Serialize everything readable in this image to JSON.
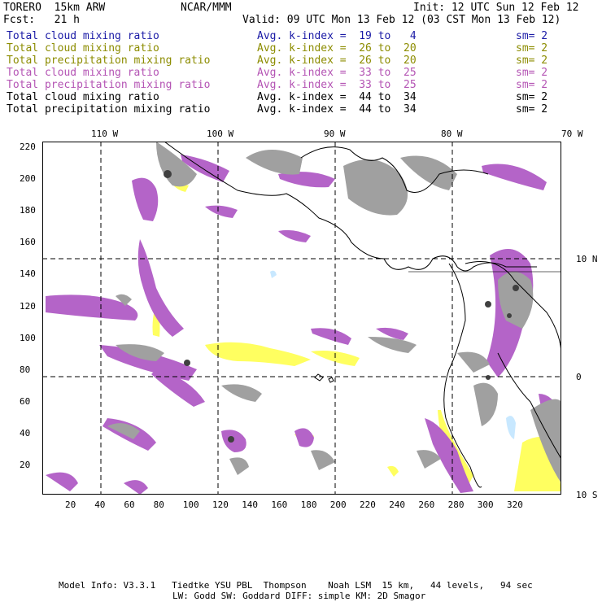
{
  "header": {
    "model": "TORERO  15km ARW",
    "center": "NCAR/MMM",
    "init": "Init: 12 UTC Sun 12 Feb 12",
    "fcst": "Fcst:   21 h",
    "valid": "Valid: 09 UTC Mon 13 Feb 12 (03 CST Mon 13 Feb 12)"
  },
  "legend": [
    {
      "field": "Total cloud mixing ratio",
      "kindex": "Avg. k-index =  19 to   4",
      "sm": "sm= 2",
      "color": "#1a1aa6"
    },
    {
      "field": "Total cloud mixing ratio",
      "kindex": "Avg. k-index =  26 to  20",
      "sm": "sm= 2",
      "color": "#8c8c00"
    },
    {
      "field": "Total precipitation mixing ratio",
      "kindex": "Avg. k-index =  26 to  20",
      "sm": "sm= 2",
      "color": "#8c8c00"
    },
    {
      "field": "Total cloud mixing ratio",
      "kindex": "Avg. k-index =  33 to  25",
      "sm": "sm= 2",
      "color": "#b454b4"
    },
    {
      "field": "Total precipitation mixing ratio",
      "kindex": "Avg. k-index =  33 to  25",
      "sm": "sm= 2",
      "color": "#b454b4"
    },
    {
      "field": "Total cloud mixing ratio",
      "kindex": "Avg. k-index =  44 to  34",
      "sm": "sm= 2",
      "color": "#000000"
    },
    {
      "field": "Total precipitation mixing ratio",
      "kindex": "Avg. k-index =  44 to  34",
      "sm": "sm= 2",
      "color": "#000000"
    }
  ],
  "axes": {
    "lon_labels": [
      "110 W",
      "100 W",
      "90 W",
      "80 W",
      "70 W"
    ],
    "lat_labels": [
      "10 N",
      "0",
      "10 S"
    ],
    "x_ticks": [
      "20",
      "40",
      "60",
      "80",
      "100",
      "120",
      "140",
      "160",
      "180",
      "200",
      "220",
      "240",
      "260",
      "280",
      "300",
      "320"
    ],
    "y_ticks": [
      "220",
      "200",
      "180",
      "160",
      "140",
      "120",
      "100",
      "80",
      "60",
      "40",
      "20"
    ]
  },
  "footer": {
    "line1": "Model Info: V3.3.1   Tiedtke YSU PBL  Thompson    Noah LSM  15 km,   44 levels,   94 sec",
    "line2": "LW: Godd SW: Goddard DIFF: simple KM: 2D Smagor"
  },
  "colors": {
    "gray": "#a0a0a0",
    "purple": "#b464c8",
    "yellow": "#ffff60",
    "lightblue": "#c8e8ff",
    "darkgray": "#505050"
  }
}
